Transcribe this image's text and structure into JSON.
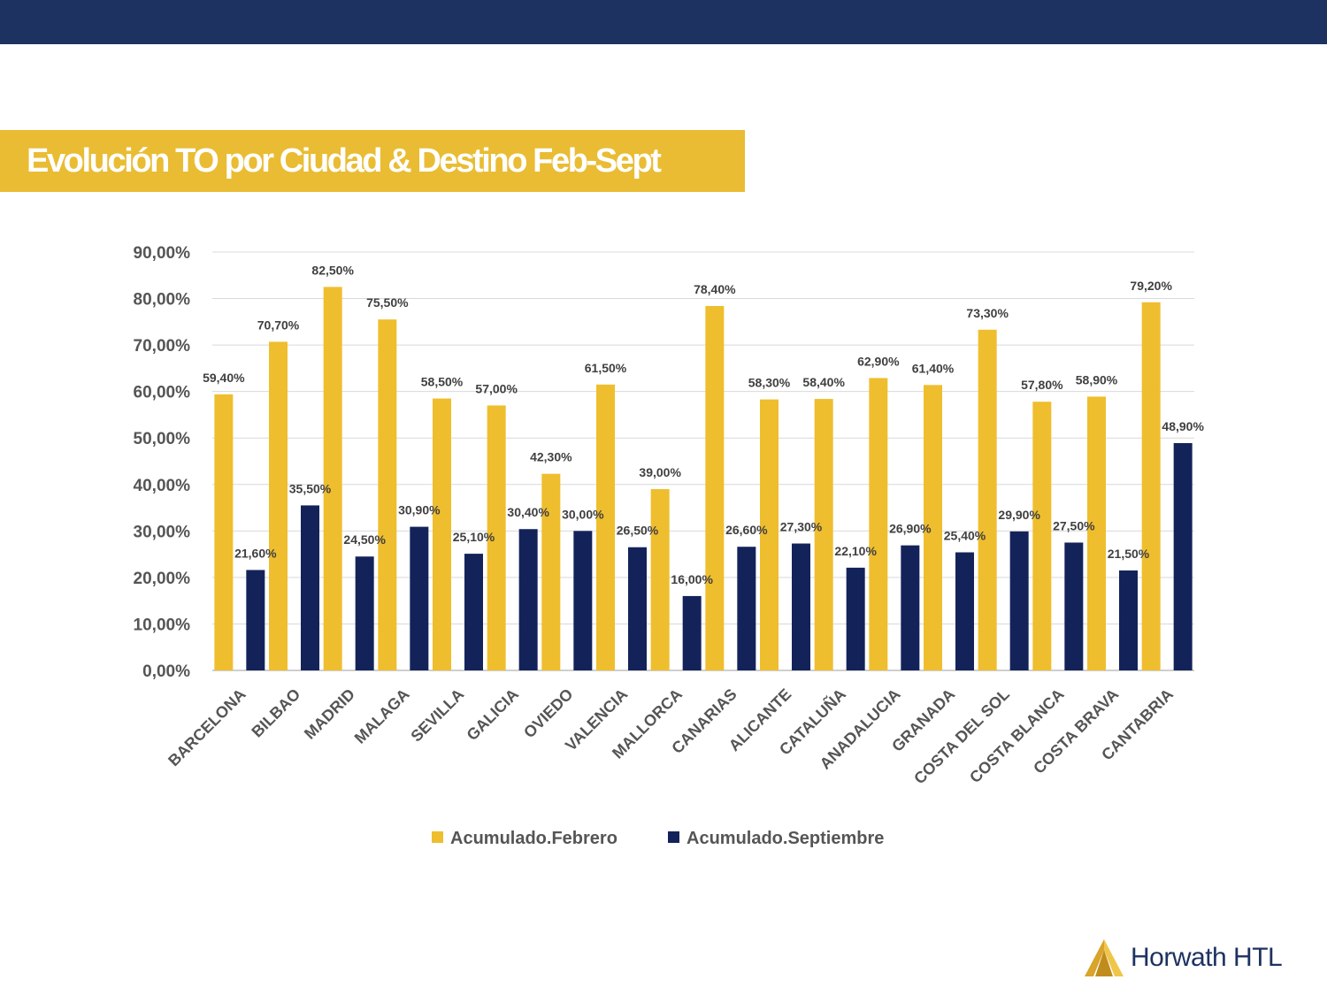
{
  "header": {
    "title": "Evolución TO por Ciudad & Destino Feb-Sept"
  },
  "brand": {
    "logo_text": "Horwath HTL",
    "colors": {
      "navy": "#1d3260",
      "gold": "#e9bc33"
    }
  },
  "chart_data": {
    "type": "bar",
    "title": "",
    "xlabel": "",
    "ylabel": "",
    "ylim": [
      0,
      90
    ],
    "y_ticks": [
      "0,00%",
      "10,00%",
      "20,00%",
      "30,00%",
      "40,00%",
      "50,00%",
      "60,00%",
      "70,00%",
      "80,00%",
      "90,00%"
    ],
    "grid": true,
    "legend_position": "bottom",
    "categories": [
      "BARCELONA",
      "BILBAO",
      "MADRID",
      "MALAGA",
      "SEVILLA",
      "GALICIA",
      "OVIEDO",
      "VALENCIA",
      "MALLORCA",
      "CANARIAS",
      "ALICANTE",
      "CATALUÑA",
      "ANADALUCIA",
      "GRANADA",
      "COSTA DEL SOL",
      "COSTA BLANCA",
      "COSTA BRAVA",
      "CANTABRIA"
    ],
    "series": [
      {
        "name": "Acumulado.Febrero",
        "color": "#efbe2e",
        "values": [
          59.4,
          70.7,
          82.5,
          75.5,
          58.5,
          57.0,
          42.3,
          61.5,
          39.0,
          78.4,
          58.3,
          58.4,
          62.9,
          61.4,
          73.3,
          57.8,
          58.9,
          79.2
        ],
        "labels": [
          "59,40%",
          "70,70%",
          "82,50%",
          "75,50%",
          "58,50%",
          "57,00%",
          "42,30%",
          "61,50%",
          "39,00%",
          "78,40%",
          "58,30%",
          "58,40%",
          "62,90%",
          "61,40%",
          "73,30%",
          "57,80%",
          "58,90%",
          "79,20%"
        ]
      },
      {
        "name": "Acumulado.Septiembre",
        "color": "#13235a",
        "values": [
          21.6,
          35.5,
          24.5,
          30.9,
          25.1,
          30.4,
          30.0,
          26.5,
          16.0,
          26.6,
          27.3,
          22.1,
          26.9,
          25.4,
          29.9,
          27.5,
          21.5,
          48.9
        ],
        "labels": [
          "21,60%",
          "35,50%",
          "24,50%",
          "30,90%",
          "25,10%",
          "30,40%",
          "30,00%",
          "26,50%",
          "16,00%",
          "26,60%",
          "27,30%",
          "22,10%",
          "26,90%",
          "25,40%",
          "29,90%",
          "27,50%",
          "21,50%",
          "48,90%"
        ]
      }
    ]
  }
}
